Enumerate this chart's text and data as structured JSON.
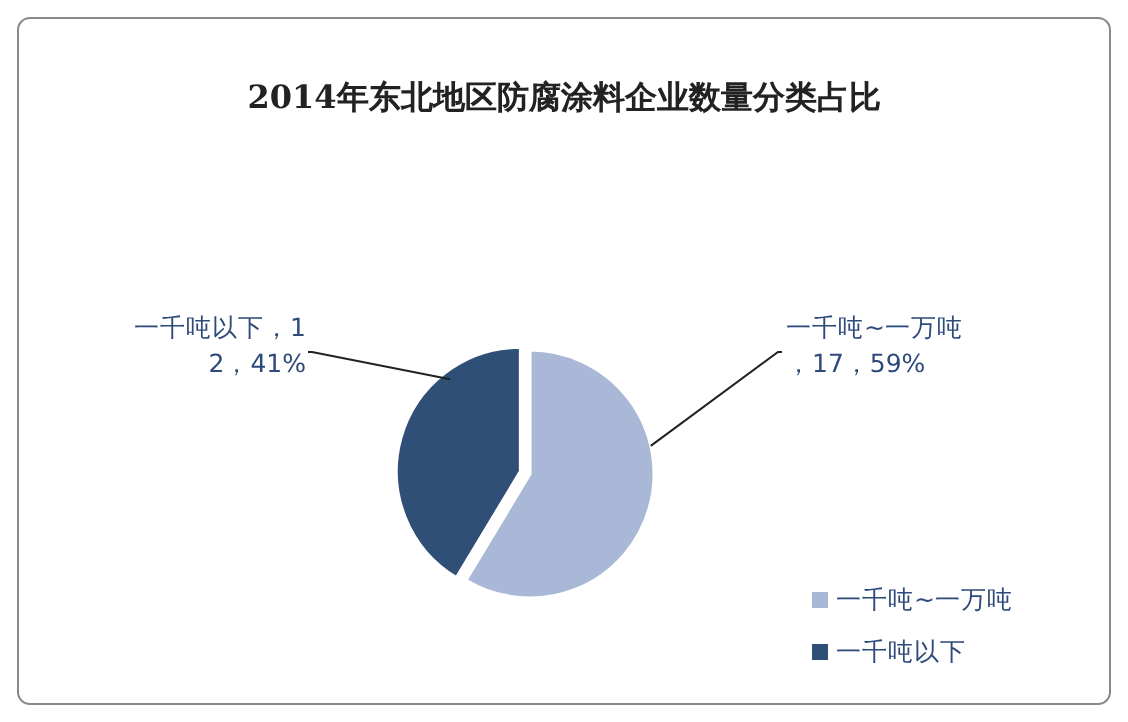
{
  "chart_data": {
    "type": "pie",
    "title": "2014年东北地区防腐涂料企业数量分类占比",
    "categories": [
      "一千吨~一万吨",
      "一千吨以下"
    ],
    "values": [
      17,
      12
    ],
    "colors": [
      "#a9b8d6",
      "#2f4f77"
    ],
    "data_labels": true,
    "value_labels": [
      "一千吨~一万吨，17，59%",
      "一千吨以下，12，41%"
    ],
    "legend": "bottom right"
  }
}
